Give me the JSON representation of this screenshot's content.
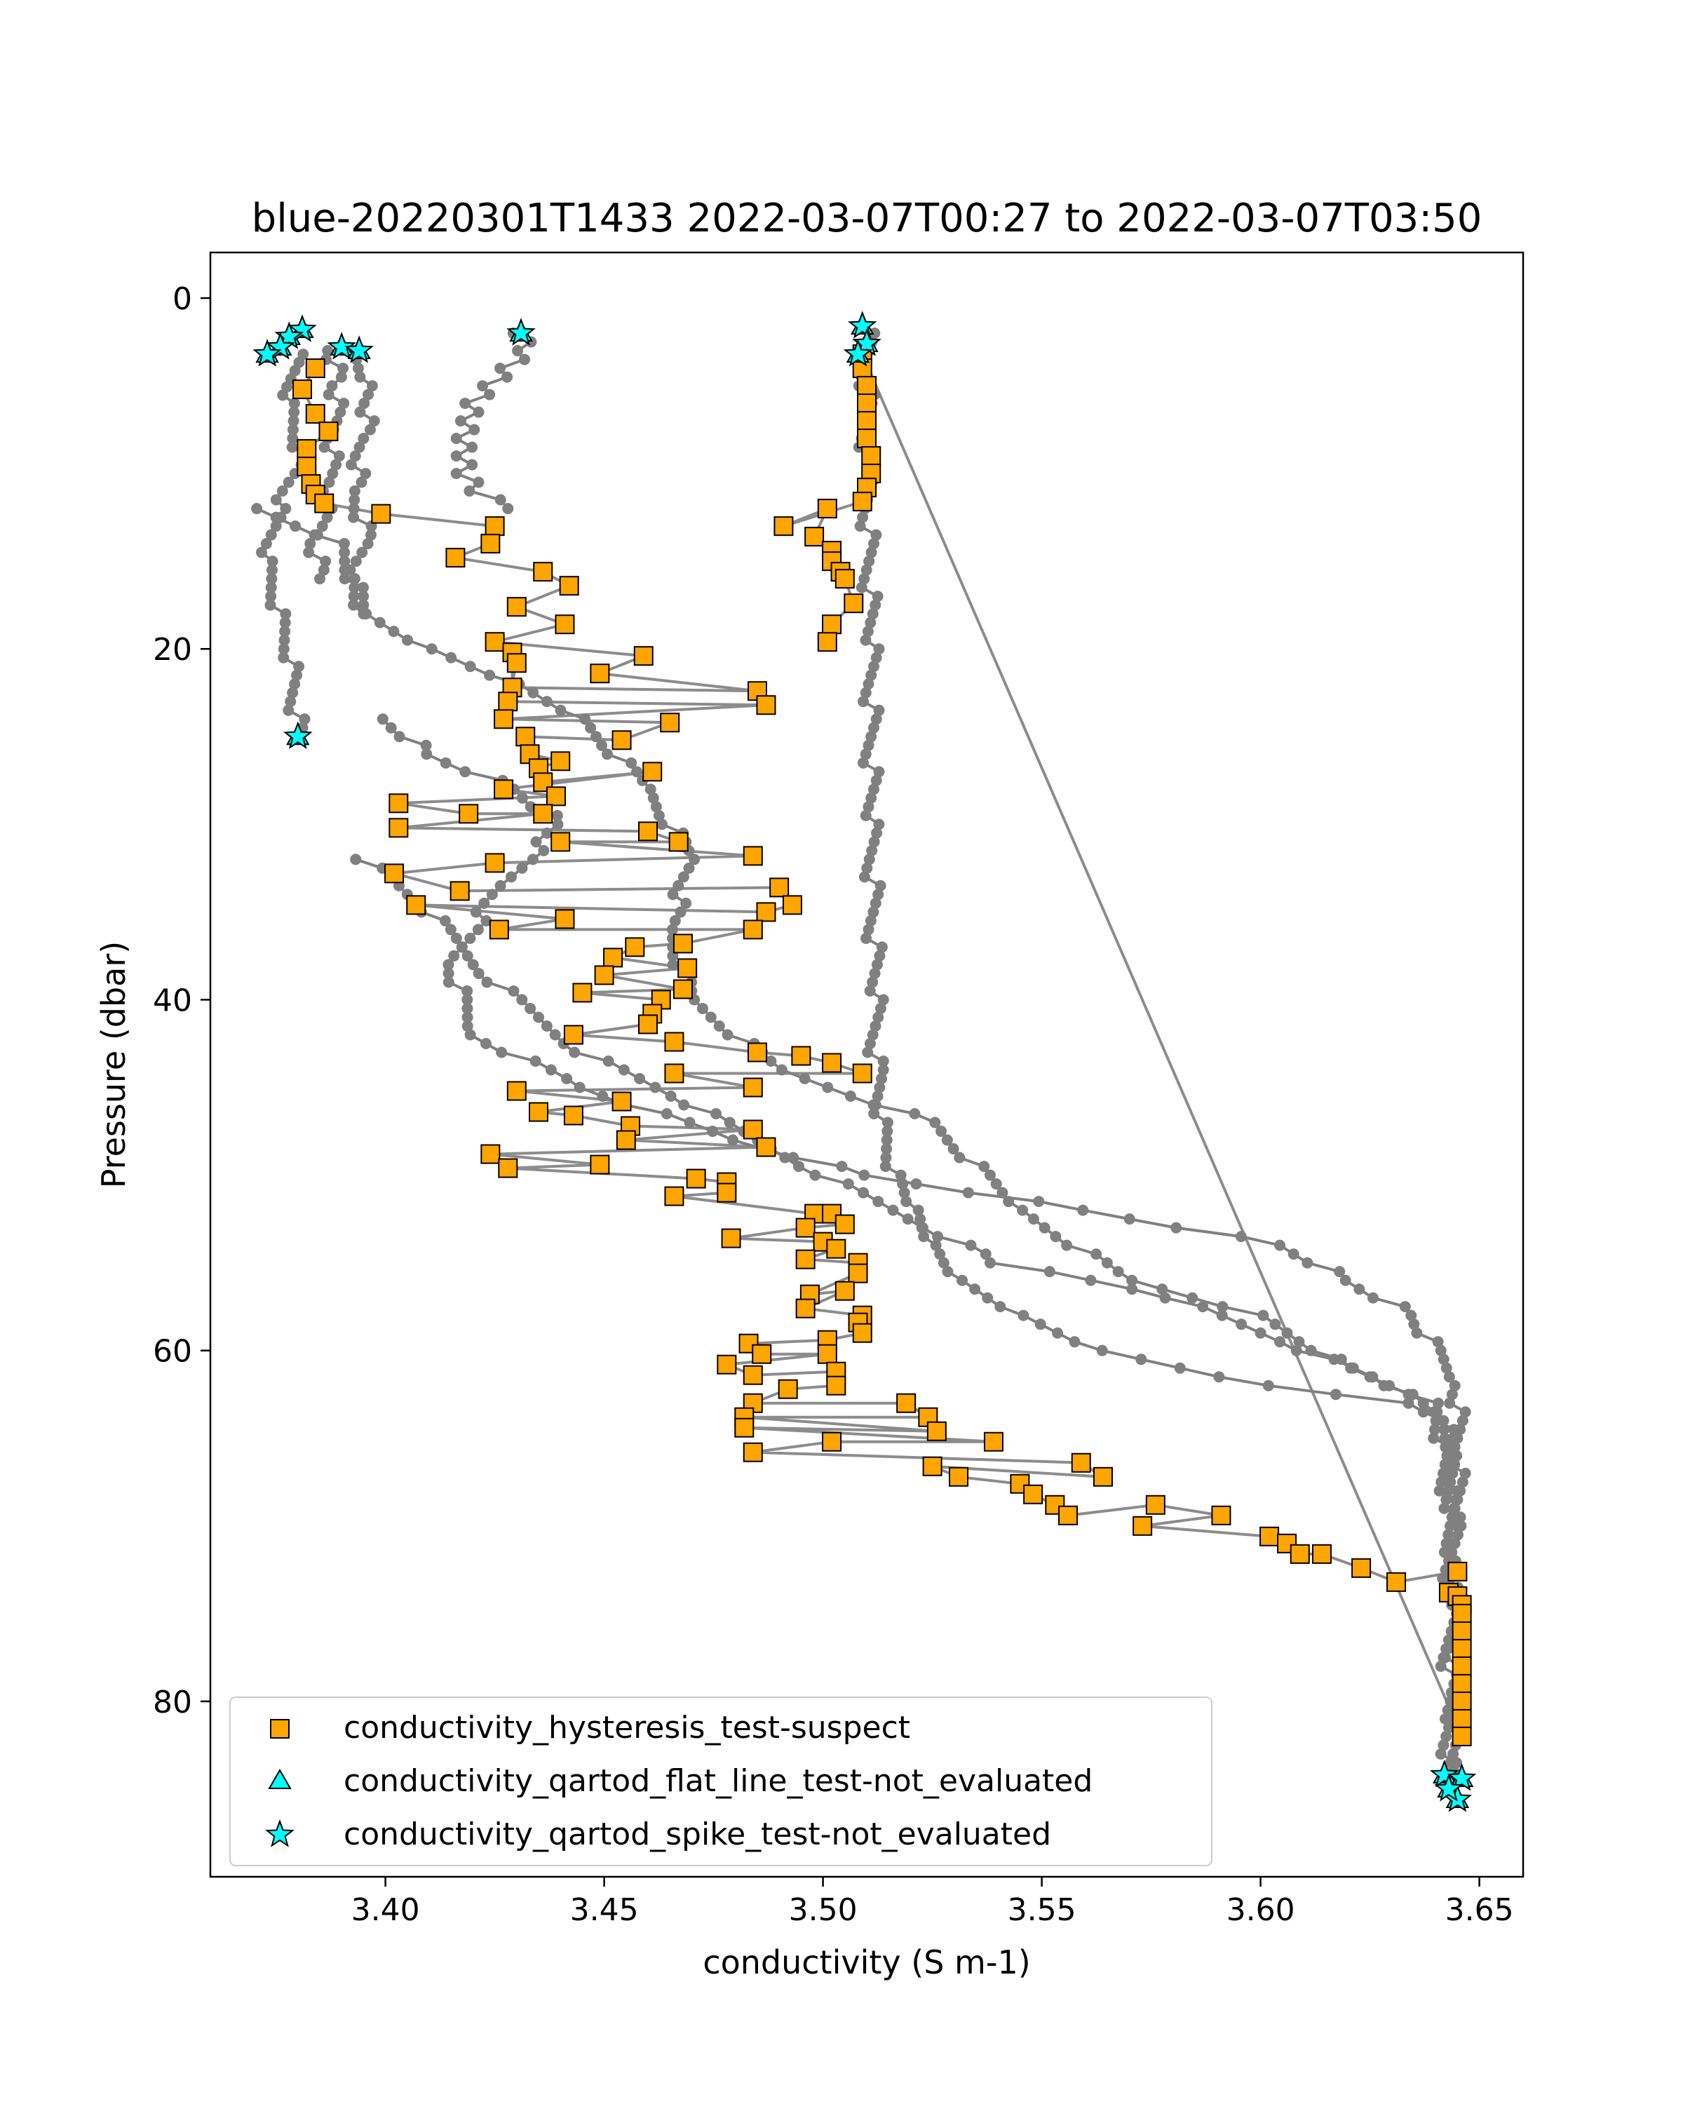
{
  "chart_data": {
    "type": "scatter",
    "title": "blue-20220301T1433 2022-03-07T00:27 to 2022-03-07T03:50",
    "xlabel": "conductivity (S m-1)",
    "ylabel": "Pressure (dbar)",
    "xlim": [
      3.36,
      3.66
    ],
    "ylim": [
      90,
      -2.6
    ],
    "y_inverted": true,
    "xticks": [
      3.4,
      3.45,
      3.5,
      3.55,
      3.6,
      3.65
    ],
    "xtick_labels": [
      "3.40",
      "3.45",
      "3.50",
      "3.55",
      "3.60",
      "3.65"
    ],
    "yticks": [
      0,
      20,
      40,
      60,
      80
    ],
    "ytick_labels": [
      "0",
      "20",
      "40",
      "60",
      "80"
    ],
    "grid": false,
    "legend_placement": "lower-left",
    "colors": {
      "profile_line": "#808080",
      "suspect": "#ffa500",
      "not_evaluated": "#00ffff",
      "marker_edge": "#000000"
    },
    "profiles": [
      [
        [
          3.431,
          2
        ],
        [
          3.432,
          3
        ],
        [
          3.428,
          4
        ],
        [
          3.424,
          5
        ],
        [
          3.42,
          6
        ],
        [
          3.419,
          7
        ],
        [
          3.418,
          8
        ],
        [
          3.418,
          9
        ],
        [
          3.418,
          10
        ],
        [
          3.421,
          11
        ],
        [
          3.428,
          12
        ]
      ],
      [
        [
          3.38,
          3.2
        ],
        [
          3.378,
          6
        ],
        [
          3.381,
          9
        ],
        [
          3.376,
          12
        ],
        [
          3.373,
          15
        ],
        [
          3.376,
          18
        ],
        [
          3.379,
          21
        ],
        [
          3.38,
          25
        ]
      ],
      [
        [
          3.393,
          3
        ],
        [
          3.397,
          5
        ],
        [
          3.395,
          8
        ],
        [
          3.393,
          11
        ],
        [
          3.396,
          14
        ],
        [
          3.393,
          16
        ],
        [
          3.395,
          18
        ]
      ],
      [
        [
          3.388,
          3
        ],
        [
          3.389,
          5
        ],
        [
          3.388,
          8
        ],
        [
          3.387,
          11
        ],
        [
          3.384,
          14
        ],
        [
          3.385,
          16
        ]
      ],
      [
        [
          3.51,
          2
        ],
        [
          3.51,
          10
        ],
        [
          3.511,
          20
        ],
        [
          3.511,
          30
        ],
        [
          3.512,
          40
        ],
        [
          3.512,
          44
        ],
        [
          3.513,
          47
        ],
        [
          3.516,
          50
        ],
        [
          3.52,
          52
        ],
        [
          3.524,
          54
        ],
        [
          3.53,
          56
        ],
        [
          3.544,
          58
        ],
        [
          3.562,
          60
        ],
        [
          3.6,
          62
        ],
        [
          3.632,
          63
        ],
        [
          3.64,
          64
        ],
        [
          3.643,
          66
        ],
        [
          3.644,
          70
        ],
        [
          3.643,
          75
        ],
        [
          3.643,
          80
        ],
        [
          3.643,
          85
        ]
      ],
      [
        [
          3.37,
          12
        ],
        [
          3.39,
          14
        ],
        [
          3.395,
          18
        ],
        [
          3.41,
          20
        ],
        [
          3.43,
          22
        ],
        [
          3.445,
          24
        ],
        [
          3.46,
          28
        ],
        [
          3.47,
          32
        ],
        [
          3.465,
          36
        ],
        [
          3.47,
          40
        ],
        [
          3.49,
          44
        ],
        [
          3.525,
          47
        ],
        [
          3.545,
          52
        ],
        [
          3.57,
          56
        ],
        [
          3.6,
          58
        ],
        [
          3.62,
          61
        ],
        [
          3.64,
          63
        ],
        [
          3.642,
          66
        ],
        [
          3.644,
          72
        ],
        [
          3.644,
          84
        ]
      ],
      [
        [
          3.4,
          24
        ],
        [
          3.41,
          26
        ],
        [
          3.43,
          28
        ],
        [
          3.44,
          30
        ],
        [
          3.425,
          34
        ],
        [
          3.415,
          38
        ],
        [
          3.42,
          42
        ],
        [
          3.445,
          45
        ],
        [
          3.48,
          48
        ],
        [
          3.51,
          50
        ],
        [
          3.56,
          52
        ],
        [
          3.605,
          54
        ],
        [
          3.62,
          56
        ],
        [
          3.635,
          58
        ],
        [
          3.645,
          62
        ],
        [
          3.645,
          70
        ]
      ],
      [
        [
          3.395,
          32
        ],
        [
          3.41,
          35
        ],
        [
          3.425,
          39
        ],
        [
          3.445,
          43
        ],
        [
          3.47,
          46
        ],
        [
          3.5,
          50
        ],
        [
          3.54,
          55
        ],
        [
          3.58,
          57
        ],
        [
          3.61,
          60
        ],
        [
          3.63,
          62
        ],
        [
          3.642,
          64
        ],
        [
          3.645,
          68
        ]
      ]
    ],
    "series": [
      {
        "name": "conductivity_hysteresis_test-suspect",
        "marker": "square",
        "color": "#ffa500",
        "points": [
          [
            3.384,
            4
          ],
          [
            3.381,
            5.2
          ],
          [
            3.384,
            6.6
          ],
          [
            3.387,
            7.6
          ],
          [
            3.382,
            8.6
          ],
          [
            3.382,
            9.6
          ],
          [
            3.383,
            10.6
          ],
          [
            3.384,
            11.2
          ],
          [
            3.386,
            11.7
          ],
          [
            3.399,
            12.3
          ],
          [
            3.425,
            13
          ],
          [
            3.424,
            14
          ],
          [
            3.416,
            14.8
          ],
          [
            3.436,
            15.6
          ],
          [
            3.442,
            16.4
          ],
          [
            3.43,
            17.6
          ],
          [
            3.441,
            18.6
          ],
          [
            3.425,
            19.6
          ],
          [
            3.459,
            20.4
          ],
          [
            3.449,
            21.4
          ],
          [
            3.485,
            22.4
          ],
          [
            3.429,
            22.2
          ],
          [
            3.429,
            20.2
          ],
          [
            3.43,
            20.8
          ],
          [
            3.428,
            23
          ],
          [
            3.487,
            23.2
          ],
          [
            3.427,
            24
          ],
          [
            3.465,
            24.2
          ],
          [
            3.454,
            25.2
          ],
          [
            3.432,
            25
          ],
          [
            3.433,
            26
          ],
          [
            3.44,
            26.4
          ],
          [
            3.435,
            26.8
          ],
          [
            3.436,
            27.6
          ],
          [
            3.461,
            27
          ],
          [
            3.427,
            28
          ],
          [
            3.439,
            28.4
          ],
          [
            3.403,
            28.8
          ],
          [
            3.419,
            29.4
          ],
          [
            3.436,
            29.4
          ],
          [
            3.403,
            30.2
          ],
          [
            3.46,
            30.4
          ],
          [
            3.467,
            31
          ],
          [
            3.44,
            31
          ],
          [
            3.484,
            31.8
          ],
          [
            3.425,
            32.2
          ],
          [
            3.402,
            32.8
          ],
          [
            3.417,
            33.8
          ],
          [
            3.49,
            33.6
          ],
          [
            3.493,
            34.6
          ],
          [
            3.487,
            35
          ],
          [
            3.407,
            34.6
          ],
          [
            3.441,
            35.4
          ],
          [
            3.426,
            36
          ],
          [
            3.484,
            36
          ],
          [
            3.468,
            36.8
          ],
          [
            3.457,
            37
          ],
          [
            3.452,
            37.6
          ],
          [
            3.469,
            38.2
          ],
          [
            3.45,
            38.6
          ],
          [
            3.468,
            39.4
          ],
          [
            3.445,
            39.6
          ],
          [
            3.463,
            40
          ],
          [
            3.461,
            40.8
          ],
          [
            3.46,
            41.4
          ],
          [
            3.443,
            42
          ],
          [
            3.466,
            42.4
          ],
          [
            3.485,
            43
          ],
          [
            3.495,
            43.2
          ],
          [
            3.502,
            43.6
          ],
          [
            3.509,
            44.2
          ],
          [
            3.466,
            44.2
          ],
          [
            3.484,
            45
          ],
          [
            3.43,
            45.2
          ],
          [
            3.454,
            45.8
          ],
          [
            3.435,
            46.4
          ],
          [
            3.443,
            46.6
          ],
          [
            3.456,
            47.2
          ],
          [
            3.484,
            47.4
          ],
          [
            3.455,
            48
          ],
          [
            3.487,
            48.4
          ],
          [
            3.424,
            48.8
          ],
          [
            3.449,
            49.4
          ],
          [
            3.428,
            49.6
          ],
          [
            3.471,
            50.2
          ],
          [
            3.478,
            50.4
          ],
          [
            3.478,
            51
          ],
          [
            3.466,
            51.2
          ],
          [
            3.498,
            52.2
          ],
          [
            3.502,
            52.2
          ],
          [
            3.505,
            52.8
          ],
          [
            3.496,
            53
          ],
          [
            3.479,
            53.6
          ],
          [
            3.5,
            53.8
          ],
          [
            3.503,
            54.2
          ],
          [
            3.496,
            54.8
          ],
          [
            3.508,
            55
          ],
          [
            3.508,
            55.6
          ],
          [
            3.497,
            56.8
          ],
          [
            3.505,
            56.6
          ],
          [
            3.496,
            57.6
          ],
          [
            3.509,
            58
          ],
          [
            3.508,
            58.4
          ],
          [
            3.509,
            59
          ],
          [
            3.501,
            59.4
          ],
          [
            3.483,
            59.6
          ],
          [
            3.486,
            60.2
          ],
          [
            3.501,
            60.2
          ],
          [
            3.478,
            60.8
          ],
          [
            3.484,
            61.4
          ],
          [
            3.503,
            61.2
          ],
          [
            3.503,
            62
          ],
          [
            3.492,
            62.2
          ],
          [
            3.484,
            63
          ],
          [
            3.519,
            63
          ],
          [
            3.524,
            63.8
          ],
          [
            3.482,
            63.8
          ],
          [
            3.526,
            64.6
          ],
          [
            3.482,
            64.4
          ],
          [
            3.539,
            65.2
          ],
          [
            3.502,
            65.2
          ],
          [
            3.484,
            65.8
          ],
          [
            3.559,
            66.4
          ],
          [
            3.564,
            67.2
          ],
          [
            3.525,
            66.6
          ],
          [
            3.531,
            67.2
          ],
          [
            3.545,
            67.6
          ],
          [
            3.548,
            68.2
          ],
          [
            3.553,
            68.8
          ],
          [
            3.556,
            69.4
          ],
          [
            3.576,
            68.8
          ],
          [
            3.591,
            69.4
          ],
          [
            3.573,
            70
          ],
          [
            3.602,
            70.6
          ],
          [
            3.606,
            71
          ],
          [
            3.609,
            71.6
          ],
          [
            3.614,
            71.6
          ],
          [
            3.623,
            72.4
          ],
          [
            3.631,
            73.2
          ],
          [
            3.645,
            72.6
          ],
          [
            3.643,
            73.8
          ],
          [
            3.645,
            74
          ],
          [
            3.646,
            74.5
          ],
          [
            3.646,
            75
          ],
          [
            3.646,
            76
          ],
          [
            3.646,
            77
          ],
          [
            3.646,
            78
          ],
          [
            3.646,
            79
          ],
          [
            3.646,
            80
          ],
          [
            3.646,
            81
          ],
          [
            3.646,
            82
          ],
          [
            3.509,
            3.2
          ],
          [
            3.509,
            4
          ],
          [
            3.51,
            5
          ],
          [
            3.51,
            6
          ],
          [
            3.51,
            7
          ],
          [
            3.51,
            8
          ],
          [
            3.511,
            9
          ],
          [
            3.511,
            10
          ],
          [
            3.51,
            10.8
          ],
          [
            3.509,
            11.6
          ],
          [
            3.491,
            13
          ],
          [
            3.501,
            12
          ],
          [
            3.498,
            13.6
          ],
          [
            3.502,
            14.4
          ],
          [
            3.502,
            15
          ],
          [
            3.504,
            15.6
          ],
          [
            3.505,
            16
          ],
          [
            3.507,
            17.4
          ],
          [
            3.502,
            18.6
          ],
          [
            3.501,
            19.6
          ]
        ]
      },
      {
        "name": "conductivity_qartod_flat_line_test-not_evaluated",
        "marker": "triangle",
        "color": "#00ffff",
        "points": [
          [
            3.381,
            1.8
          ],
          [
            3.378,
            2.2
          ],
          [
            3.376,
            2.8
          ],
          [
            3.373,
            3.2
          ],
          [
            3.39,
            2.8
          ],
          [
            3.394,
            3
          ],
          [
            3.431,
            2
          ],
          [
            3.509,
            1.6
          ],
          [
            3.51,
            2.6
          ],
          [
            3.508,
            3.2
          ],
          [
            3.38,
            25
          ],
          [
            3.642,
            84.2
          ],
          [
            3.646,
            84.4
          ],
          [
            3.645,
            85.6
          ],
          [
            3.643,
            85
          ]
        ]
      },
      {
        "name": "conductivity_qartod_spike_test-not_evaluated",
        "marker": "star",
        "color": "#00ffff",
        "points": [
          [
            3.381,
            1.8
          ],
          [
            3.378,
            2.2
          ],
          [
            3.376,
            2.8
          ],
          [
            3.373,
            3.2
          ],
          [
            3.39,
            2.8
          ],
          [
            3.394,
            3
          ],
          [
            3.431,
            2
          ],
          [
            3.509,
            1.6
          ],
          [
            3.51,
            2.6
          ],
          [
            3.508,
            3.2
          ],
          [
            3.38,
            25
          ],
          [
            3.642,
            84.2
          ],
          [
            3.646,
            84.4
          ],
          [
            3.645,
            85.6
          ],
          [
            3.643,
            85
          ]
        ]
      }
    ]
  }
}
